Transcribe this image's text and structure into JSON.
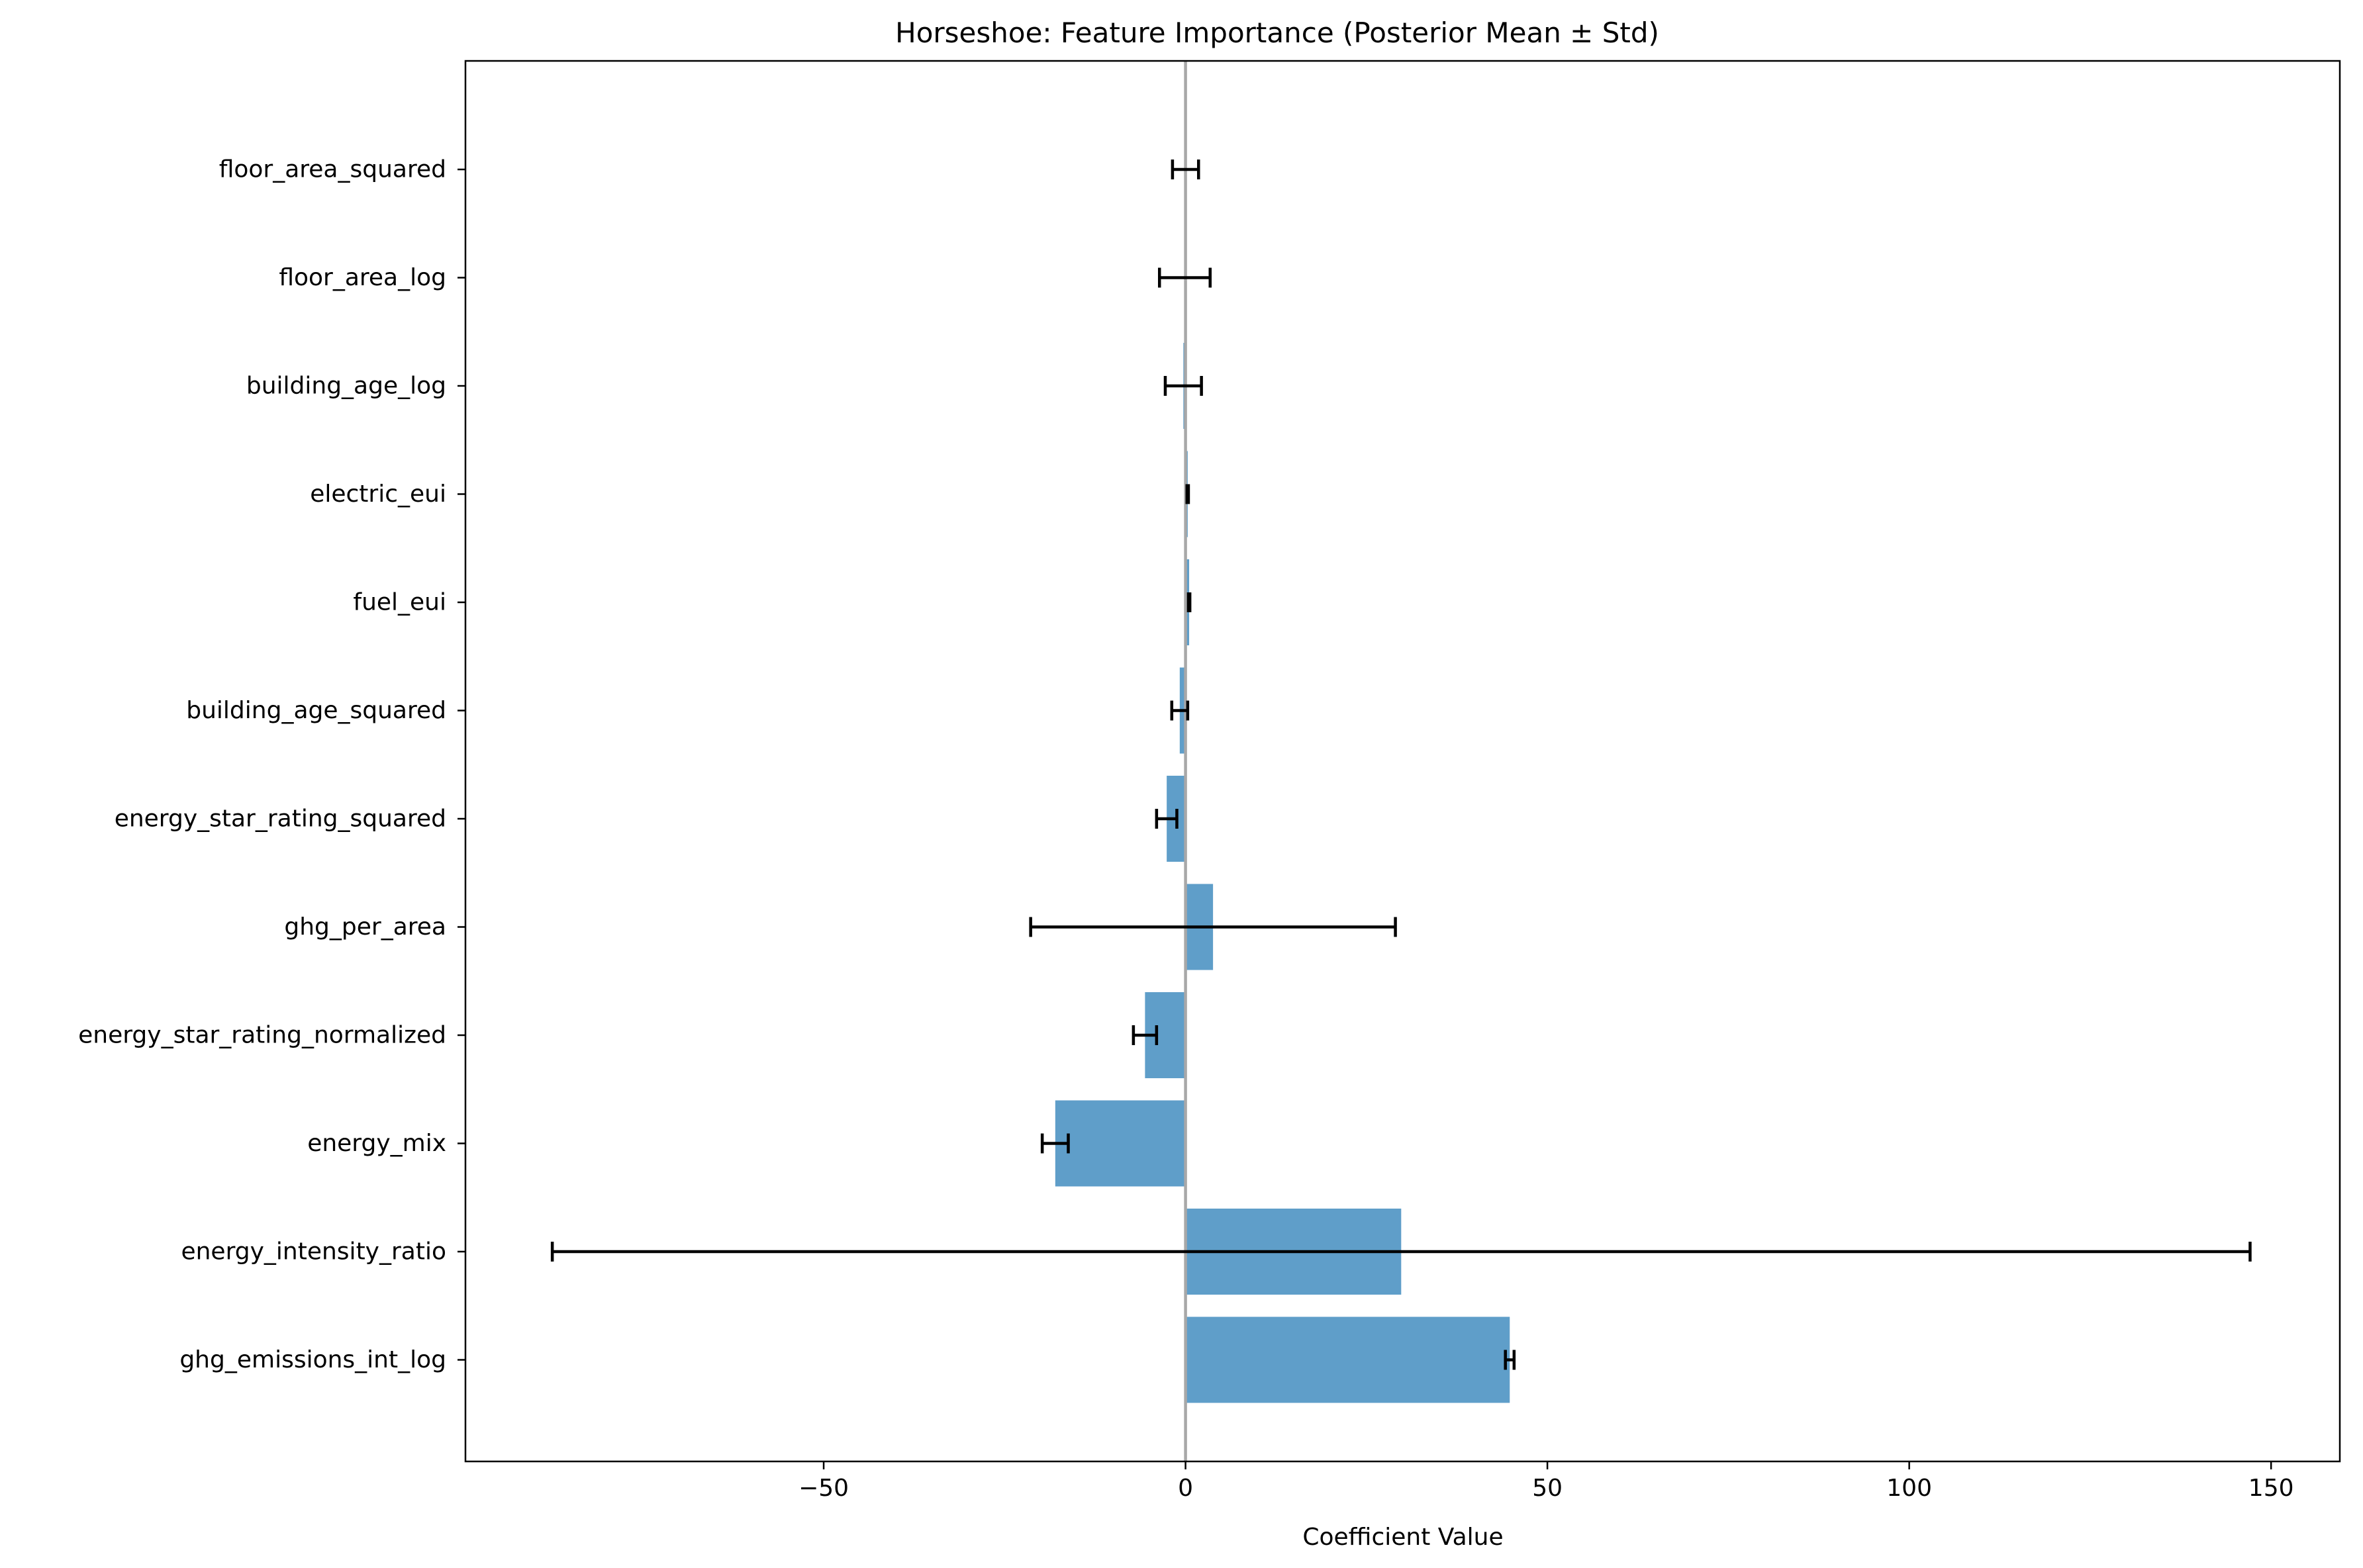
{
  "chart_data": {
    "type": "bar",
    "orientation": "horizontal",
    "title": "Horseshoe: Feature Importance (Posterior Mean ± Std)",
    "xlabel": "Coefficient Value",
    "ylabel": "",
    "xlim": [
      -99.5,
      159.5
    ],
    "xticks": [
      -50,
      0,
      50,
      100,
      150
    ],
    "xtick_labels": [
      "−50",
      "0",
      "50",
      "100",
      "150"
    ],
    "grid": false,
    "legend": "none",
    "categories": [
      "floor_area_squared",
      "floor_area_log",
      "building_age_log",
      "electric_eui",
      "fuel_eui",
      "building_age_squared",
      "energy_star_rating_squared",
      "ghg_per_area",
      "energy_star_rating_normalized",
      "energy_mix",
      "energy_intensity_ratio",
      "ghg_emissions_int_log"
    ],
    "values": [
      0.0,
      -0.1,
      -0.3,
      0.3,
      0.5,
      -0.8,
      -2.6,
      3.8,
      -5.6,
      -18.0,
      29.8,
      44.8
    ],
    "std": [
      1.8,
      3.5,
      2.5,
      0.1,
      0.1,
      1.1,
      1.4,
      25.2,
      1.6,
      1.8,
      117.3,
      0.6
    ],
    "bar_color": "#5f9ec9",
    "error_color": "#000000",
    "zero_line_color": "#a8a8a8"
  }
}
